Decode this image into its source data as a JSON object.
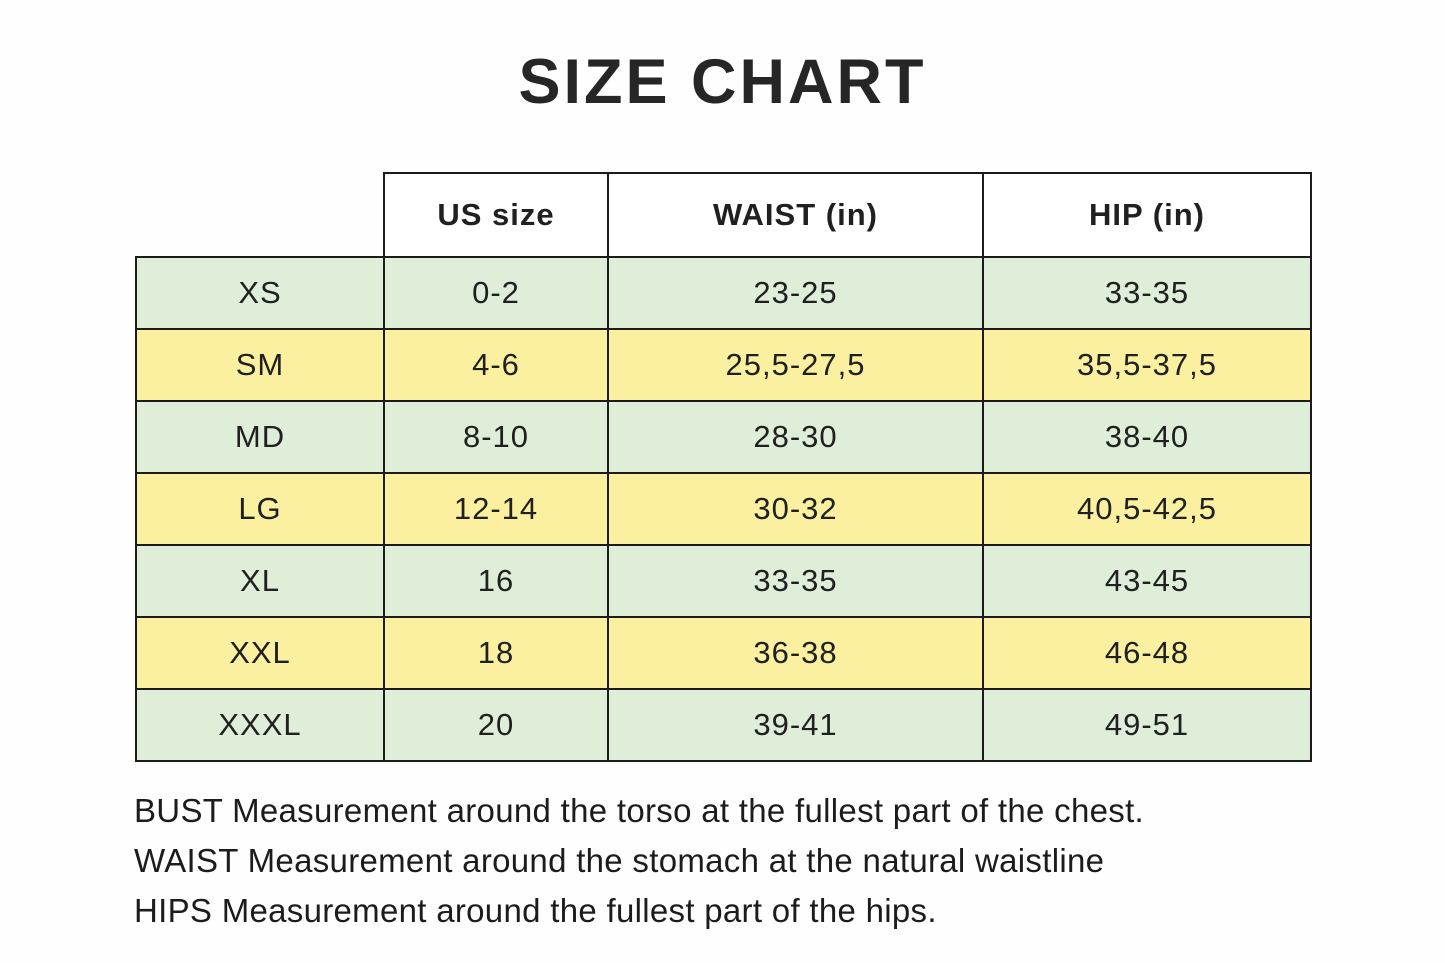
{
  "title": "SIZE CHART",
  "chart_data": {
    "type": "table",
    "title": "SIZE CHART",
    "columns": [
      "",
      "US size",
      "WAIST (in)",
      "HIP (in)"
    ],
    "rows": [
      [
        "XS",
        "0-2",
        "23-25",
        "33-35"
      ],
      [
        "SM",
        "4-6",
        "25,5-27,5",
        "35,5-37,5"
      ],
      [
        "MD",
        "8-10",
        "28-30",
        "38-40"
      ],
      [
        "LG",
        "12-14",
        "30-32",
        "40,5-42,5"
      ],
      [
        "XL",
        "16",
        "33-35",
        "43-45"
      ],
      [
        "XXL",
        "18",
        "36-38",
        "46-48"
      ],
      [
        "XXXL",
        "20",
        "39-41",
        "49-51"
      ]
    ],
    "row_stripe_order": [
      "green",
      "yellow",
      "green",
      "yellow",
      "green",
      "yellow",
      "green"
    ]
  },
  "notes": [
    "BUST Measurement around the torso at the fullest part of the chest.",
    "WAIST Measurement around the stomach at the natural waistline",
    "HIPS Measurement around the fullest part of the hips."
  ],
  "colors": {
    "background": "#fefefe",
    "row_green": "#deeed8",
    "row_yellow": "#faf0a0",
    "border": "#1b1b1b",
    "text": "#1f1f1f"
  }
}
